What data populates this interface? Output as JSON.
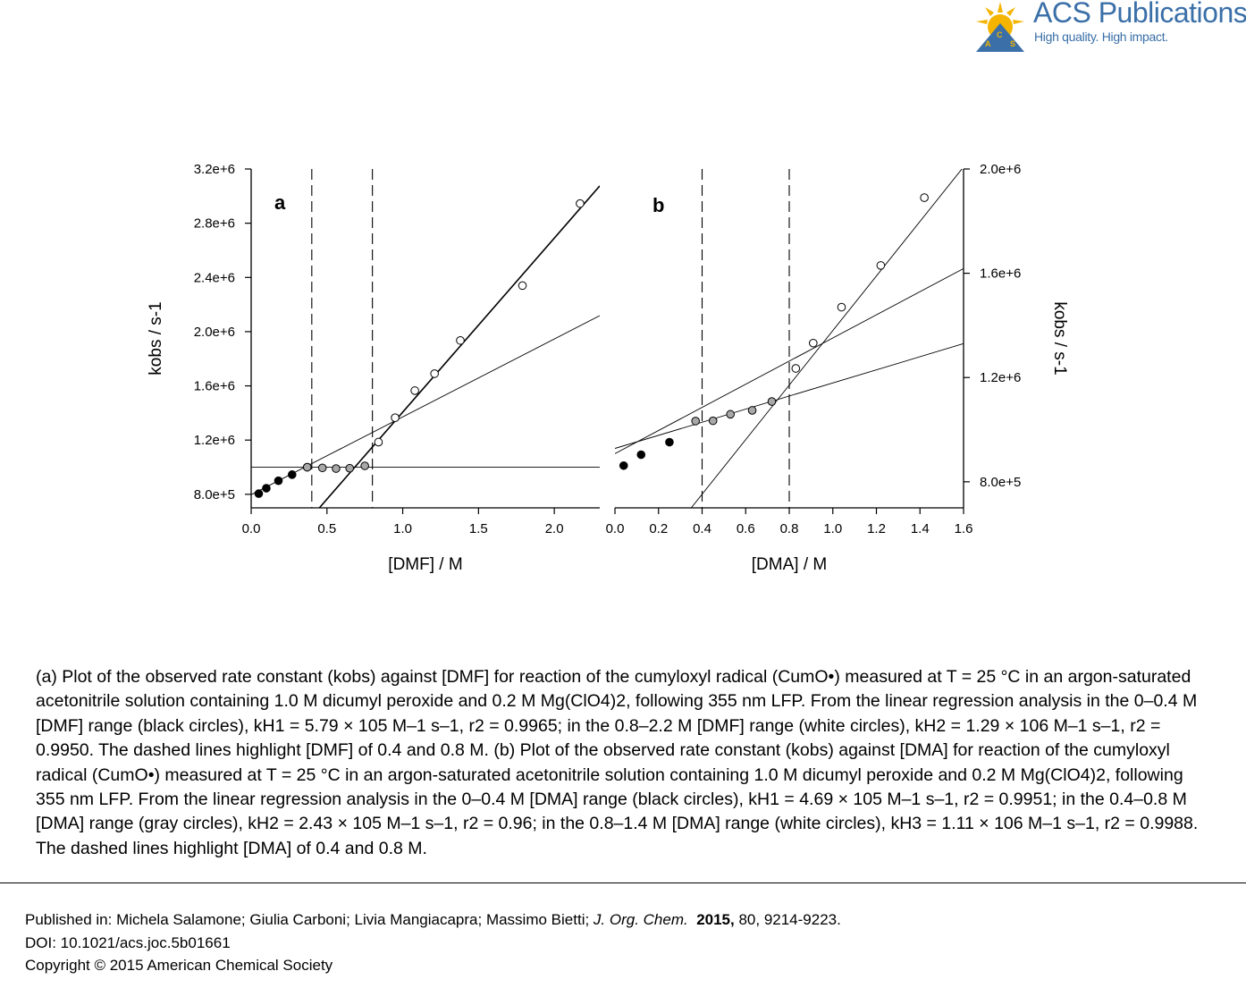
{
  "brand": {
    "name": "ACS Publications",
    "tagline": "High quality. High impact.",
    "accent_color": "#3a6fa8",
    "gold_color": "#f4b400"
  },
  "chart_data": [
    {
      "panel": "a",
      "type": "scatter",
      "xlabel": "[DMF] / M",
      "ylabel": "kobs / s-1",
      "xlim": [
        0.0,
        2.3
      ],
      "ylim": [
        700000,
        3200000
      ],
      "xticks": [
        "0.0",
        "0.5",
        "1.0",
        "1.5",
        "2.0"
      ],
      "yticks": [
        "8.0e+5",
        "1.2e+6",
        "1.6e+6",
        "2.0e+6",
        "2.4e+6",
        "2.8e+6",
        "3.2e+6"
      ],
      "y_axis_side": "left",
      "dashed_vlines": [
        0.4,
        0.8
      ],
      "series": [
        {
          "fill": "black",
          "x": [
            0.05,
            0.1,
            0.18,
            0.27,
            0.37
          ],
          "y": [
            805000,
            845000,
            900000,
            945000,
            1000000
          ]
        },
        {
          "fill": "gray",
          "x": [
            0.37,
            0.47,
            0.56,
            0.65,
            0.75
          ],
          "y": [
            1000000,
            995000,
            990000,
            992000,
            1010000
          ]
        },
        {
          "fill": "white",
          "x": [
            0.84,
            0.95,
            1.08,
            1.21,
            1.38,
            1.79,
            2.17
          ],
          "y": [
            1185000,
            1365000,
            1565000,
            1690000,
            1935000,
            2340000,
            2945000
          ]
        }
      ],
      "lines": [
        {
          "style": "thin",
          "x": [
            0.0,
            2.3
          ],
          "y": [
            1000000,
            1000000
          ]
        },
        {
          "style": "thin",
          "x": [
            0.0,
            2.3
          ],
          "y": [
            797000,
            2118000
          ]
        },
        {
          "style": "bold",
          "x": [
            0.45,
            2.3
          ],
          "y": [
            700000,
            3075000
          ]
        }
      ]
    },
    {
      "panel": "b",
      "type": "scatter",
      "xlabel": "[DMA] / M",
      "ylabel": "kobs / s-1",
      "xlim": [
        0.0,
        1.6
      ],
      "ylim": [
        700000,
        2000000
      ],
      "xticks": [
        "0.0",
        "0.2",
        "0.4",
        "0.6",
        "0.8",
        "1.0",
        "1.2",
        "1.4",
        "1.6"
      ],
      "yticks": [
        "8.0e+5",
        "1.2e+6",
        "1.6e+6",
        "2.0e+6"
      ],
      "y_axis_side": "right",
      "dashed_vlines": [
        0.4,
        0.8
      ],
      "series": [
        {
          "fill": "black",
          "x": [
            0.04,
            0.12,
            0.25
          ],
          "y": [
            862000,
            904000,
            952000
          ]
        },
        {
          "fill": "gray",
          "x": [
            0.37,
            0.45,
            0.53,
            0.63,
            0.72
          ],
          "y": [
            1033000,
            1034000,
            1059000,
            1074000,
            1108000
          ]
        },
        {
          "fill": "white",
          "x": [
            0.83,
            0.91,
            1.04,
            1.22,
            1.42
          ],
          "y": [
            1235000,
            1332000,
            1470000,
            1630000,
            1890000
          ]
        }
      ],
      "lines": [
        {
          "style": "thin",
          "x": [
            0.0,
            1.6
          ],
          "y": [
            928000,
            1330000
          ]
        },
        {
          "style": "thin",
          "x": [
            0.0,
            1.6
          ],
          "y": [
            908000,
            1618000
          ]
        },
        {
          "style": "thin",
          "x": [
            0.35,
            1.6
          ],
          "y": [
            700000,
            2008000
          ]
        }
      ]
    }
  ],
  "caption": {
    "text": "(a) Plot of the observed rate constant (kobs) against [DMF] for reaction of the cumyloxyl radical (CumO•) measured at T = 25 °C in an argon-saturated acetonitrile solution containing 1.0 M dicumyl peroxide and 0.2 M Mg(ClO4)2, following 355 nm LFP. From the linear regression analysis in the 0–0.4 M [DMF] range (black circles), kH1 = 5.79 × 105 M–1 s–1, r2 = 0.9965; in the 0.8–2.2 M [DMF] range (white circles), kH2 = 1.29 × 106 M–1 s–1, r2 = 0.9950. The dashed lines highlight [DMF] of 0.4 and 0.8 M. (b) Plot of the observed rate constant (kobs) against [DMA] for reaction of the cumyloxyl radical (CumO•) measured at T = 25 °C in an argon-saturated acetonitrile solution containing 1.0 M dicumyl peroxide and 0.2 M Mg(ClO4)2, following 355 nm LFP. From the linear regression analysis in the 0–0.4 M [DMA] range (black circles), kH1 = 4.69 × 105 M–1 s–1, r2 = 0.9951; in the 0.4–0.8 M [DMA] range (gray circles), kH2 = 2.43 × 105 M–1 s–1, r2 = 0.96; in the 0.8–1.4 M [DMA] range (white circles), kH3 = 1.11 × 106 M–1 s–1, r2 = 0.9988. The dashed lines highlight [DMA] of 0.4 and 0.8 M."
  },
  "citation": {
    "published_prefix": "Published in: Michela Salamone; Giulia Carboni; Livia Mangiacapra; Massimo Bietti; ",
    "journal": "J. Org. Chem.",
    "year": "2015,",
    "volume_pages": " 80, 9214-9223.",
    "doi": "DOI: 10.1021/acs.joc.5b01661",
    "copyright": "Copyright © 2015 American Chemical Society"
  }
}
